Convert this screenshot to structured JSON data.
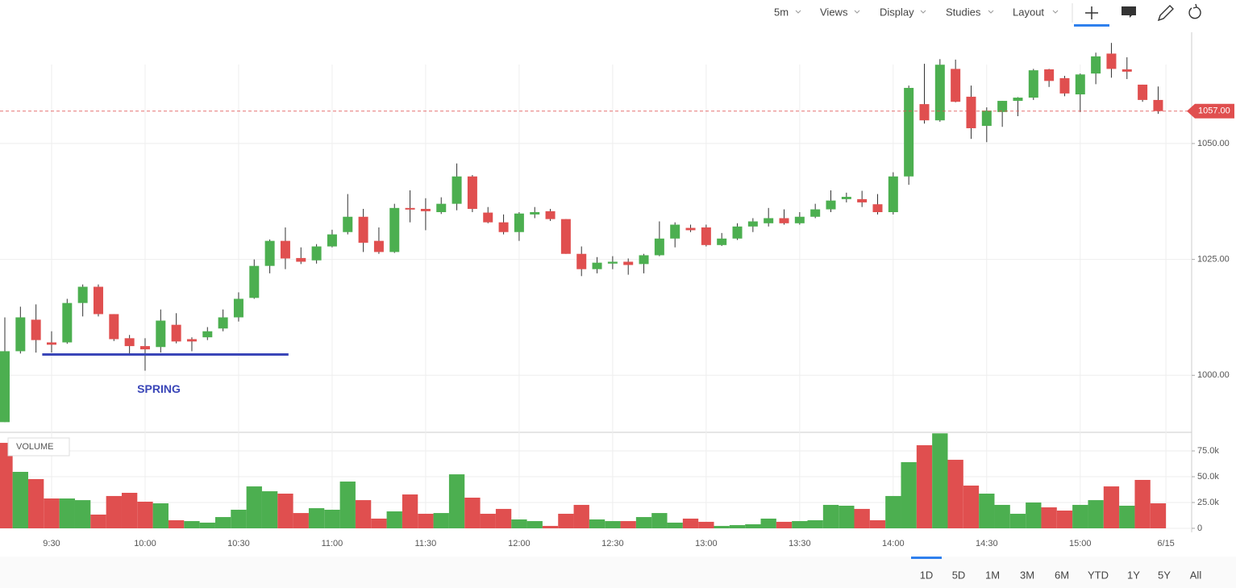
{
  "toolbar": {
    "items": [
      "5m",
      "Views",
      "Display",
      "Studies",
      "Layout"
    ]
  },
  "ranges": [
    "1D",
    "5D",
    "1M",
    "3M",
    "6M",
    "YTD",
    "1Y",
    "5Y",
    "All"
  ],
  "chart_data": {
    "type": "candlestick",
    "up_color": "#4caf50",
    "down_color": "#e04f4f",
    "open": [
      989.9,
      1005.2,
      1012.0,
      1007.1,
      1007.1,
      1015.6,
      1019.1,
      1013.2,
      1008.0,
      1006.3,
      1006.1,
      1010.9,
      1007.8,
      1008.2,
      1010.1,
      1012.5,
      1016.7,
      1023.6,
      1029.0,
      1025.3,
      1024.8,
      1027.8,
      1030.9,
      1034.2,
      1029.0,
      1026.6,
      1036.1,
      1035.9,
      1035.2,
      1037.0,
      1042.9,
      1035.1,
      1033.0,
      1030.9,
      1034.7,
      1035.4,
      1033.7,
      1026.2,
      1022.9,
      1024.1,
      1024.5,
      1024.0,
      1025.9,
      1029.5,
      1031.8,
      1031.9,
      1028.1,
      1029.5,
      1032.1,
      1032.8,
      1033.9,
      1032.8,
      1034.2,
      1035.8,
      1038.0,
      1038.0,
      1036.9,
      1035.2,
      1042.9,
      1058.5,
      1055.0,
      1066.1,
      1060.1,
      1053.8,
      1056.8,
      1059.2,
      1059.9,
      1066.0,
      1064.1,
      1060.6,
      1065.1,
      1069.4,
      1066.0,
      1062.7,
      1059.4
    ],
    "high": [
      1012.5,
      1014.8,
      1015.3,
      1009.5,
      1016.5,
      1019.6,
      1019.6,
      1013.2,
      1008.7,
      1008.0,
      1014.2,
      1013.4,
      1008.2,
      1010.4,
      1014.2,
      1017.9,
      1025.0,
      1029.3,
      1031.9,
      1027.6,
      1028.3,
      1031.4,
      1039.1,
      1035.9,
      1031.9,
      1037.0,
      1039.9,
      1038.2,
      1038.4,
      1045.7,
      1043.2,
      1036.3,
      1034.7,
      1035.2,
      1036.3,
      1035.9,
      1033.7,
      1027.8,
      1025.5,
      1025.7,
      1025.2,
      1026.2,
      1033.2,
      1033.0,
      1032.5,
      1032.5,
      1030.7,
      1032.8,
      1033.9,
      1036.1,
      1035.8,
      1035.2,
      1037.0,
      1039.9,
      1039.4,
      1039.8,
      1039.1,
      1043.8,
      1062.5,
      1067.2,
      1068.2,
      1068.1,
      1062.5,
      1057.8,
      1059.2,
      1060.0,
      1066.1,
      1066.1,
      1064.6,
      1065.1,
      1069.6,
      1071.7,
      1068.6,
      1062.7,
      1062.3
    ],
    "low": [
      989.9,
      1004.7,
      1004.9,
      1004.9,
      1006.8,
      1012.7,
      1012.7,
      1007.4,
      1004.7,
      1001.0,
      1004.9,
      1006.9,
      1005.2,
      1007.6,
      1009.5,
      1011.6,
      1016.5,
      1022.0,
      1022.9,
      1024.0,
      1024.1,
      1027.6,
      1030.4,
      1026.6,
      1026.2,
      1026.4,
      1033.0,
      1031.3,
      1034.8,
      1035.6,
      1035.2,
      1032.8,
      1030.4,
      1029.0,
      1033.9,
      1033.3,
      1026.2,
      1021.4,
      1022.0,
      1022.9,
      1021.7,
      1022.0,
      1025.7,
      1027.6,
      1030.9,
      1027.8,
      1027.9,
      1029.2,
      1030.9,
      1032.1,
      1032.5,
      1032.5,
      1033.9,
      1035.2,
      1037.3,
      1036.3,
      1034.7,
      1034.7,
      1041.1,
      1054.3,
      1054.7,
      1058.9,
      1051.0,
      1050.3,
      1053.6,
      1055.9,
      1059.4,
      1062.2,
      1060.2,
      1056.8,
      1062.8,
      1064.2,
      1063.9,
      1059.0,
      1056.4
    ],
    "close": [
      1005.2,
      1012.5,
      1007.6,
      1006.6,
      1015.6,
      1019.1,
      1013.2,
      1007.8,
      1006.3,
      1005.6,
      1011.8,
      1007.3,
      1007.3,
      1009.5,
      1012.5,
      1016.5,
      1023.6,
      1029.0,
      1025.2,
      1024.5,
      1027.8,
      1030.4,
      1034.2,
      1028.6,
      1026.6,
      1036.1,
      1035.8,
      1035.4,
      1037.0,
      1042.9,
      1035.9,
      1033.0,
      1030.9,
      1034.9,
      1035.2,
      1033.7,
      1026.2,
      1022.9,
      1024.3,
      1024.5,
      1023.8,
      1025.9,
      1029.5,
      1032.5,
      1031.3,
      1028.1,
      1029.5,
      1032.1,
      1033.2,
      1033.9,
      1032.8,
      1034.2,
      1035.8,
      1037.7,
      1038.5,
      1037.3,
      1035.2,
      1042.9,
      1062.0,
      1055.0,
      1067.0,
      1059.0,
      1053.3,
      1057.1,
      1059.2,
      1059.9,
      1065.8,
      1063.5,
      1060.8,
      1064.9,
      1068.8,
      1066.1,
      1065.5,
      1059.4,
      1057.0
    ],
    "volume": {
      "name": "VOLUME",
      "values": [
        82800,
        54700,
        47700,
        28900,
        28900,
        27300,
        13300,
        31300,
        34400,
        25800,
        24200,
        7800,
        7000,
        5500,
        10900,
        18000,
        40600,
        35900,
        33600,
        14800,
        19500,
        18000,
        45300,
        27300,
        9400,
        16400,
        32800,
        14100,
        14800,
        52300,
        29700,
        14100,
        18800,
        8600,
        7000,
        2300,
        14100,
        22700,
        8600,
        7000,
        7000,
        10900,
        14800,
        5500,
        9400,
        6300,
        2300,
        3100,
        3900,
        9400,
        6300,
        7000,
        7800,
        22700,
        21900,
        18800,
        7800,
        31300,
        64100,
        80500,
        92000,
        66400,
        41400,
        33600,
        22700,
        14100,
        25000,
        20300,
        17200,
        22700,
        27300,
        40600,
        21900,
        46900,
        24200
      ],
      "colors": [
        "down",
        "up",
        "down",
        "down",
        "up",
        "up",
        "down",
        "down",
        "down",
        "down",
        "up",
        "down",
        "up",
        "up",
        "up",
        "up",
        "up",
        "up",
        "down",
        "down",
        "up",
        "up",
        "up",
        "down",
        "down",
        "up",
        "down",
        "down",
        "up",
        "up",
        "down",
        "down",
        "down",
        "up",
        "up",
        "down",
        "down",
        "down",
        "up",
        "up",
        "down",
        "up",
        "up",
        "up",
        "down",
        "down",
        "up",
        "up",
        "up",
        "up",
        "down",
        "up",
        "up",
        "up",
        "up",
        "down",
        "down",
        "up",
        "up",
        "down",
        "up",
        "down",
        "down",
        "up",
        "up",
        "up",
        "up",
        "down",
        "down",
        "up",
        "up",
        "down",
        "up",
        "down",
        "down"
      ]
    },
    "xlim": [
      -0.31,
      76.15
    ],
    "xticks": [
      {
        "value": 3,
        "label": "9:30"
      },
      {
        "value": 9,
        "label": "10:00"
      },
      {
        "value": 15,
        "label": "10:30"
      },
      {
        "value": 21,
        "label": "11:00"
      },
      {
        "value": 27,
        "label": "11:30"
      },
      {
        "value": 33,
        "label": "12:00"
      },
      {
        "value": 39,
        "label": "12:30"
      },
      {
        "value": 45,
        "label": "13:00"
      },
      {
        "value": 51,
        "label": "13:30"
      },
      {
        "value": 57,
        "label": "14:00"
      },
      {
        "value": 63,
        "label": "14:30"
      },
      {
        "value": 69,
        "label": "15:00"
      },
      {
        "value": 74.5,
        "label": "6/15"
      }
    ],
    "ylim": [
      987.7,
      1074
    ],
    "yticks": [
      {
        "value": 1000,
        "label": "1000.00"
      },
      {
        "value": 1025,
        "label": "1025.00"
      },
      {
        "value": 1050,
        "label": "1050.00"
      }
    ],
    "y2lim": [
      0,
      93000
    ],
    "y2ticks": [
      0,
      {
        "value": 25000,
        "label": "25.0k"
      },
      {
        "value": 50000,
        "label": "50.0k"
      },
      {
        "value": 75000,
        "label": "75.0k"
      }
    ],
    "grid": true,
    "last_price": {
      "value": 1057,
      "label": "1057.00",
      "color": "#e04f4f"
    },
    "annotation": {
      "text": "SPRING",
      "value": 1004.5,
      "x": [
        2.4,
        18.2
      ],
      "color": "#3a46b8"
    }
  }
}
